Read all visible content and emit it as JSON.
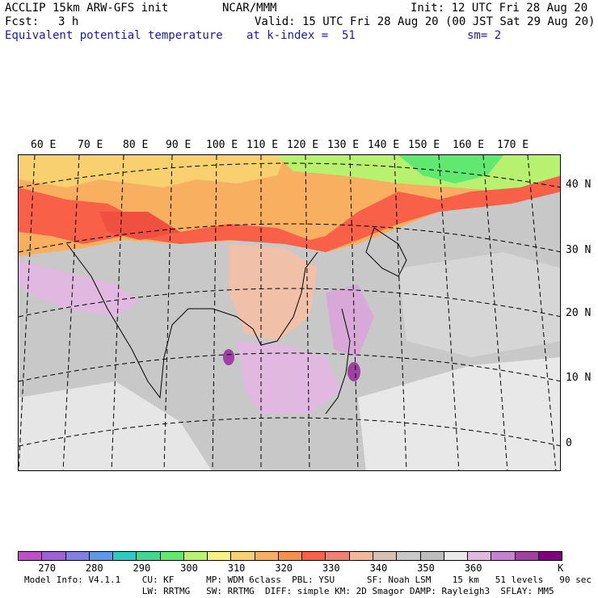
{
  "header": {
    "model": "ACCLIP 15km ARW-GFS init",
    "org": "NCAR/MMM",
    "init": "Init: 12 UTC Fri 28 Aug 20",
    "fcst_label": "Fcst:",
    "fcst_value": "3 h",
    "valid": "Valid: 15 UTC Fri 28 Aug 20 (00 JST Sat 29 Aug 20)",
    "field": "Equivalent potential temperature",
    "level": "at k-index =  51",
    "smooth": "sm= 2"
  },
  "map": {
    "lon_labels": [
      "60 E",
      "70 E",
      "80 E",
      "90 E",
      "100 E",
      "110 E",
      "120 E",
      "130 E",
      "140 E",
      "150 E",
      "160 E",
      "170 E"
    ],
    "lat_labels": [
      "40 N",
      "30 N",
      "20 N",
      "10 N",
      "0"
    ]
  },
  "colorbar": {
    "colors": [
      "#c050c8",
      "#a060d8",
      "#8080e0",
      "#6098e8",
      "#30c8c0",
      "#40d890",
      "#60e870",
      "#b8f070",
      "#f8f080",
      "#f8d070",
      "#f8b060",
      "#f89050",
      "#f86048",
      "#f08070",
      "#f0b898",
      "#d8c0b0",
      "#c8c8c8",
      "#bdbdbd",
      "#e8e8e8",
      "#e0b8e0",
      "#c880d0",
      "#a040a0",
      "#800080"
    ],
    "tick_labels": [
      "270",
      "280",
      "290",
      "300",
      "310",
      "320",
      "330",
      "340",
      "350",
      "360"
    ],
    "unit": "K"
  },
  "footer": {
    "line1": "Model Info: V4.1.1    CU: KF      MP: WDM 6class  PBL: YSU      SF: Noah LSM    15 km   51 levels   90 sec",
    "line2": "                      LW: RRTMG   SW: RRTMG  DIFF: simple KM: 2D Smagor DAMP: Rayleigh3  SFLAY: MM5"
  }
}
